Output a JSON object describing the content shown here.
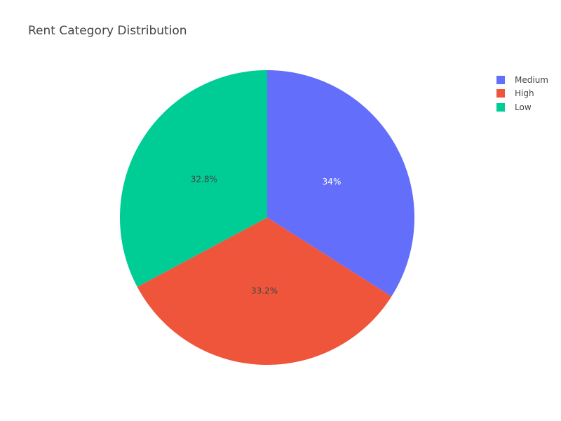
{
  "chart_data": {
    "type": "pie",
    "title": "Rent Category Distribution",
    "categories": [
      "Medium",
      "High",
      "Low"
    ],
    "values": [
      34.0,
      33.2,
      32.8
    ],
    "labels": [
      "34%",
      "33.2%",
      "32.8%"
    ],
    "colors": [
      "#636efa",
      "#EF553B",
      "#00cc96"
    ],
    "label_colors": [
      "#ffffff",
      "#444444",
      "#444444"
    ],
    "direction": "clockwise",
    "legend_position": "top-right",
    "legend": [
      {
        "label": "Medium",
        "color": "#636efa"
      },
      {
        "label": "High",
        "color": "#EF553B"
      },
      {
        "label": "Low",
        "color": "#00cc96"
      }
    ]
  }
}
